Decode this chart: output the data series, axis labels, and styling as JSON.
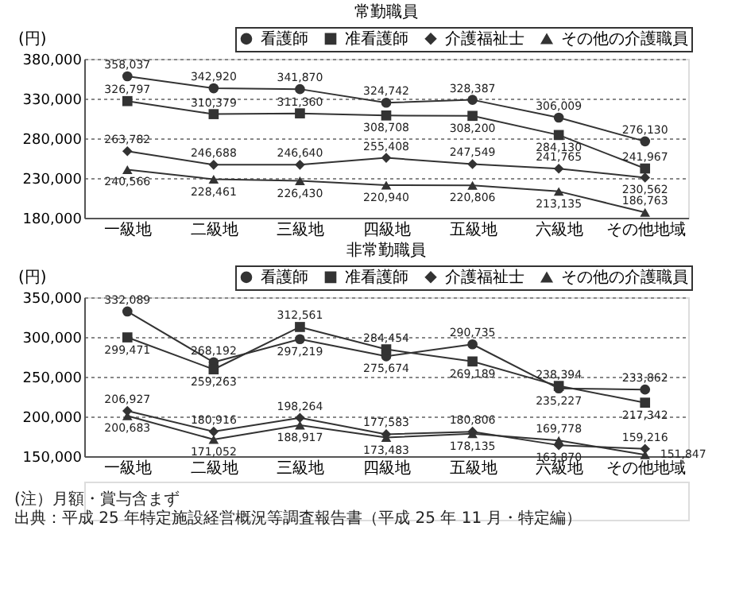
{
  "chart_data": [
    {
      "type": "line",
      "title": "常勤職員",
      "ylabel": "(円)",
      "categories": [
        "一級地",
        "二級地",
        "三級地",
        "四級地",
        "五級地",
        "六級地",
        "その他地域"
      ],
      "ylim": [
        180000,
        380000
      ],
      "yticks": [
        {
          "value": 180000,
          "label": "180,000"
        },
        {
          "value": 230000,
          "label": "230,000"
        },
        {
          "value": 280000,
          "label": "280,000"
        },
        {
          "value": 330000,
          "label": "330,000"
        },
        {
          "value": 380000,
          "label": "380,000"
        }
      ],
      "grid": "y",
      "legend": "top right",
      "line_style": "solid",
      "series": [
        {
          "name": "看護師",
          "color": "#333333",
          "marker": "circle",
          "values": [
            358037,
            342920,
            341870,
            324742,
            328387,
            306009,
            276130
          ],
          "value_labels": [
            "358,037",
            "342,920",
            "341,870",
            "324,742",
            "328,387",
            "306,009",
            "276,130"
          ]
        },
        {
          "name": "准看護師",
          "color": "#333333",
          "marker": "square",
          "values": [
            326797,
            310379,
            311360,
            308708,
            308200,
            284130,
            241967
          ],
          "value_labels": [
            "326,797",
            "310,379",
            "311,360",
            "308,708",
            "308,200",
            "284,130",
            "241,967"
          ]
        },
        {
          "name": "介護福祉士",
          "color": "#333333",
          "marker": "diamond",
          "values": [
            263782,
            246688,
            246640,
            255408,
            247549,
            241765,
            230562
          ],
          "value_labels": [
            "263,782",
            "246,688",
            "246,640",
            "255,408",
            "247,549",
            "241,765",
            "230,562"
          ]
        },
        {
          "name": "その他の介護職員",
          "color": "#333333",
          "marker": "triangle",
          "values": [
            240566,
            228461,
            226430,
            220940,
            220806,
            213135,
            186763
          ],
          "value_labels": [
            "240,566",
            "228,461",
            "226,430",
            "220,940",
            "220,806",
            "213,135",
            "186,763"
          ]
        }
      ]
    },
    {
      "type": "line",
      "title": "非常勤職員",
      "ylabel": "(円)",
      "categories": [
        "一級地",
        "二級地",
        "三級地",
        "四級地",
        "五級地",
        "六級地",
        "その他地域"
      ],
      "ylim": [
        150000,
        350000
      ],
      "yticks": [
        {
          "value": 150000,
          "label": "150,000"
        },
        {
          "value": 200000,
          "label": "200,000"
        },
        {
          "value": 250000,
          "label": "250,000"
        },
        {
          "value": 300000,
          "label": "300,000"
        },
        {
          "value": 350000,
          "label": "350,000"
        }
      ],
      "grid": "y",
      "legend": "top right",
      "line_style": "solid",
      "series": [
        {
          "name": "看護師",
          "color": "#333333",
          "marker": "circle",
          "values": [
            332089,
            268192,
            297219,
            275674,
            290735,
            235227,
            233862
          ],
          "value_labels": [
            "332,089",
            "268,192",
            "297,219",
            "275,674",
            "290,735",
            "235,227",
            "233,862"
          ]
        },
        {
          "name": "准看護師",
          "color": "#333333",
          "marker": "square",
          "values": [
            299471,
            259263,
            312561,
            284454,
            269189,
            238394,
            217342
          ],
          "value_labels": [
            "299,471",
            "259,263",
            "312,561",
            "284,454",
            "269,189",
            "238,394",
            "217,342"
          ]
        },
        {
          "name": "介護福祉士",
          "color": "#333333",
          "marker": "diamond",
          "values": [
            206927,
            180916,
            198264,
            177583,
            180806,
            163870,
            159216
          ],
          "value_labels": [
            "206,927",
            "180,916",
            "198,264",
            "177,583",
            "180,806",
            "163,870",
            "159,216"
          ]
        },
        {
          "name": "その他の介護職員",
          "color": "#333333",
          "marker": "triangle",
          "values": [
            200683,
            171052,
            188917,
            173483,
            178135,
            169778,
            151847
          ],
          "value_labels": [
            "200,683",
            "171,052",
            "188,917",
            "173,483",
            "178,135",
            "169,778",
            "151,847"
          ]
        }
      ],
      "annotations": [
        "(注）月額・賞与含まず",
        "出典：平成 25 年特定施設経営概況等調査報告書（平成 25 年 11 月・特定編）"
      ]
    }
  ]
}
